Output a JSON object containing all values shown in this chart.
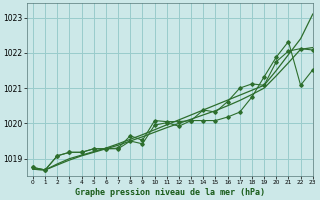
{
  "title": "Graphe pression niveau de la mer (hPa)",
  "bg_color": "#cce8e8",
  "grid_color": "#99cccc",
  "line_color": "#2d6e2d",
  "xlim": [
    -0.5,
    23
  ],
  "ylim": [
    1018.5,
    1023.4
  ],
  "yticks": [
    1019,
    1020,
    1021,
    1022,
    1023
  ],
  "xticks": [
    0,
    1,
    2,
    3,
    4,
    5,
    6,
    7,
    8,
    9,
    10,
    11,
    12,
    13,
    14,
    15,
    16,
    17,
    18,
    19,
    20,
    21,
    22,
    23
  ],
  "series_smooth": [
    [
      1018.7,
      1018.68,
      1018.85,
      1019.0,
      1019.1,
      1019.2,
      1019.3,
      1019.42,
      1019.55,
      1019.68,
      1019.82,
      1019.96,
      1020.1,
      1020.24,
      1020.38,
      1020.52,
      1020.66,
      1020.8,
      1020.94,
      1021.08,
      1021.5,
      1021.95,
      1022.4,
      1023.1
    ],
    [
      1018.7,
      1018.68,
      1018.82,
      1018.96,
      1019.08,
      1019.18,
      1019.28,
      1019.38,
      1019.5,
      1019.62,
      1019.75,
      1019.88,
      1020.0,
      1020.12,
      1020.24,
      1020.36,
      1020.5,
      1020.65,
      1020.82,
      1021.0,
      1021.35,
      1021.72,
      1022.1,
      1022.15
    ]
  ],
  "series_markers": [
    [
      1018.75,
      1018.68,
      1019.08,
      1019.18,
      1019.18,
      1019.28,
      1019.28,
      1019.3,
      1019.65,
      1019.52,
      1020.08,
      1020.05,
      1020.05,
      1020.08,
      1020.38,
      1020.32,
      1020.62,
      1021.0,
      1021.12,
      1021.08,
      1021.75,
      1022.05,
      1022.12,
      1022.08
    ],
    [
      1018.75,
      1018.68,
      1019.08,
      1019.18,
      1019.18,
      1019.28,
      1019.28,
      1019.28,
      1019.5,
      1019.42,
      1019.95,
      1020.02,
      1019.92,
      1020.08,
      1020.08,
      1020.08,
      1020.18,
      1020.32,
      1020.75,
      1021.32,
      1021.88,
      1022.32,
      1021.08,
      1021.52
    ]
  ]
}
